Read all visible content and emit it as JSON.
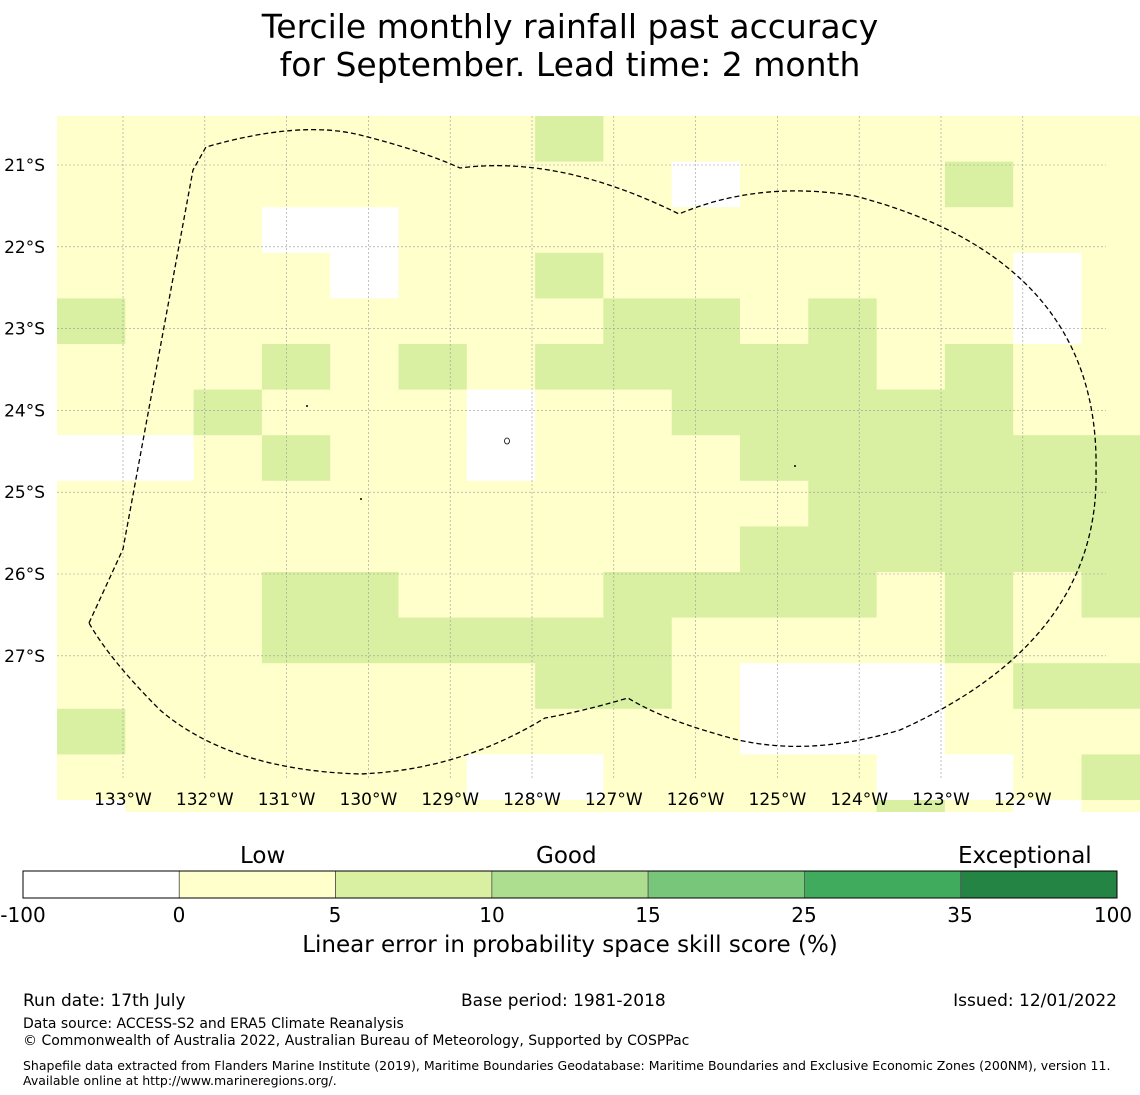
{
  "title_line1": "Tercile monthly rainfall past accuracy",
  "title_line2": "for September. Lead time: 2 month",
  "map": {
    "lat_labels": [
      "21°S",
      "22°S",
      "23°S",
      "24°S",
      "25°S",
      "26°S",
      "27°S"
    ],
    "lon_labels": [
      "133°W",
      "132°W",
      "131°W",
      "130°W",
      "129°W",
      "128°W",
      "127°W",
      "126°W",
      "125°W",
      "124°W",
      "123°W",
      "122°W"
    ],
    "grid_colors": {
      "W": "#ffffff",
      "Y": "#ffffcc",
      "G": "#d9f0a3"
    },
    "grid": [
      "YYYYYYYGYYYYYYYY",
      "YYYYYYYYYWYYYGYY",
      "YYYWWYYYYYYYYYYY",
      "YYYYWYYGYYYYYYWY",
      "GYYYYYYYGGYGYYWY",
      "YYYGYGYGGGGGYGYY",
      "YYGYYYWYYGGGGGYY",
      "WWYGYYWYYYGGGGGG",
      "YYYYYYYYYYYGGGGG",
      "YYYYYYYYYYGGGGGG",
      "YYYGGYYYGGGGYGYG",
      "YYYGGGGGGYYYYGYY",
      "YYYYYYYGGYWWWYGG",
      "GYYYYYYYYYWWWYYY",
      "YYYYYYWWYYYYWWYG"
    ],
    "bottom_row_partial": "WYYYYYYYYYYYGYWY"
  },
  "colorbar": {
    "categories": [
      "Low",
      "Good",
      "Exceptional"
    ],
    "ticks": [
      "-100",
      "0",
      "5",
      "10",
      "15",
      "25",
      "35",
      "100"
    ],
    "colors": [
      "#ffffff",
      "#ffffcc",
      "#d9f0a3",
      "#addd8e",
      "#78c679",
      "#41ab5d",
      "#238443"
    ],
    "label": "Linear error in probability space skill score (%)"
  },
  "footer": {
    "run_date": "Run date: 17th July",
    "base_period": "Base period: 1981-2018",
    "issued": "Issued: 12/01/2022",
    "data_source": "Data source: ACCESS-S2 and ERA5 Climate Reanalysis",
    "copyright": "© Commonwealth of Australia 2022, Australian Bureau of Meteorology, Supported by COSPPac",
    "shapefile": "Shapefile data extracted from Flanders Marine Institute (2019), Maritime Boundaries Geodatabase: Maritime Boundaries and Exclusive Economic Zones (200NM), version 11. Available online at http://www.marineregions.org/."
  }
}
